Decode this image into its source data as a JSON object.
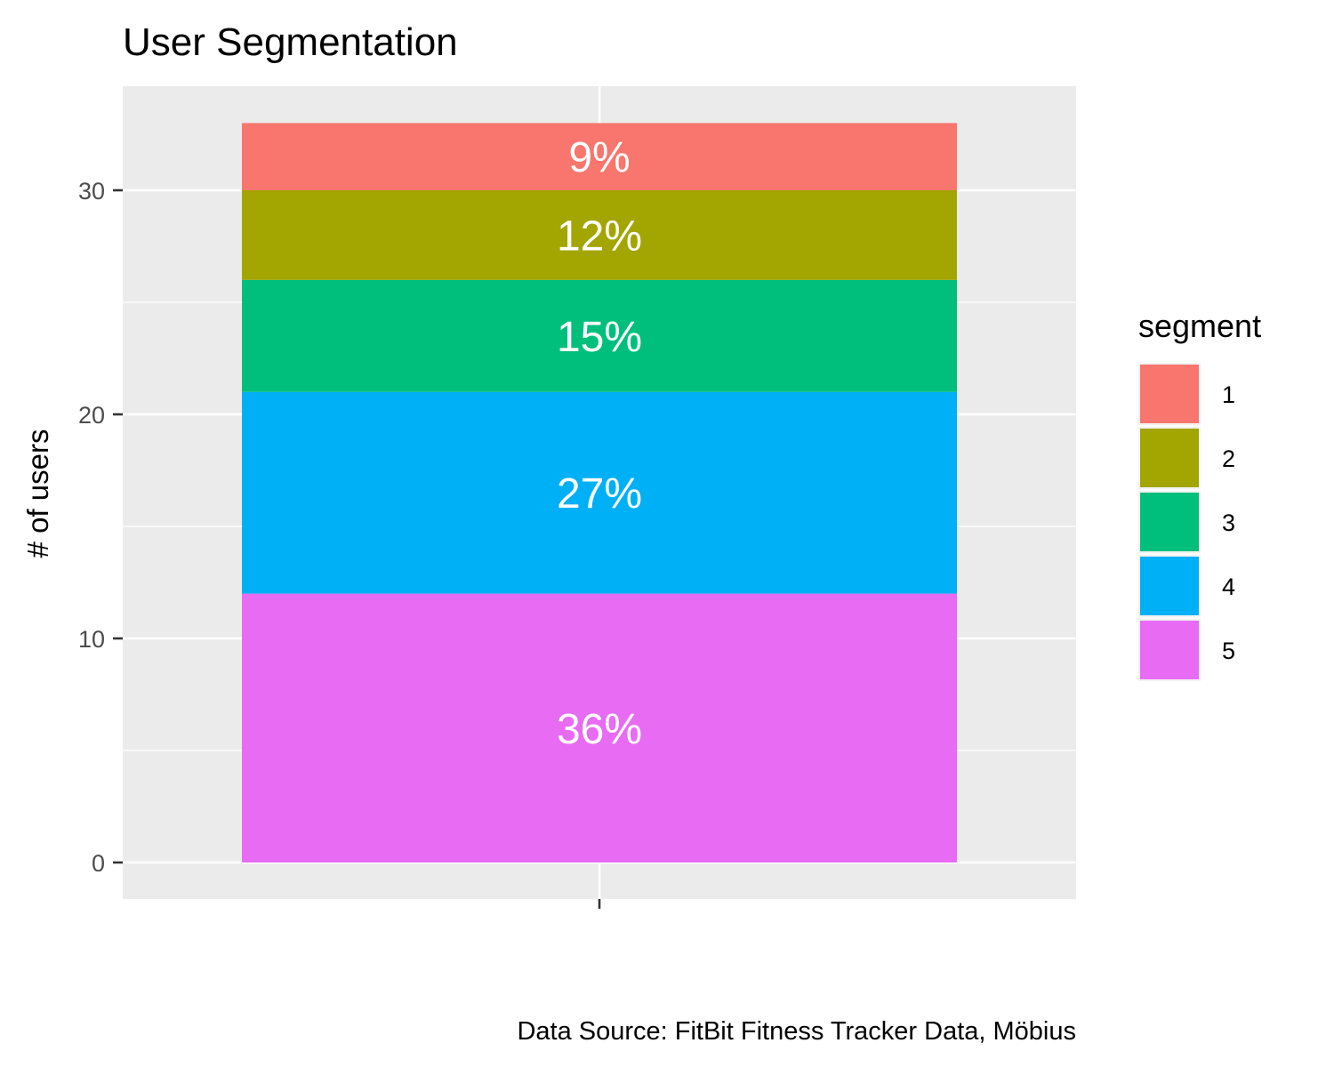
{
  "chart_data": {
    "type": "bar",
    "stacked": true,
    "title": "User Segmentation",
    "ylabel": "# of users",
    "xlabel": "",
    "categories": [
      ""
    ],
    "ylim": [
      0,
      33
    ],
    "y_ticks": [
      0,
      10,
      20,
      30
    ],
    "y_tick_labels": [
      "0",
      "10",
      "20",
      "30"
    ],
    "grid": true,
    "legend": {
      "title": "segment",
      "position": "right"
    },
    "series": [
      {
        "name": "1",
        "value": 3,
        "label": "9%",
        "color": "#F8766D"
      },
      {
        "name": "2",
        "value": 4,
        "label": "12%",
        "color": "#A3A500"
      },
      {
        "name": "3",
        "value": 5,
        "label": "15%",
        "color": "#00BF7D"
      },
      {
        "name": "4",
        "value": 9,
        "label": "27%",
        "color": "#00B0F6"
      },
      {
        "name": "5",
        "value": 12,
        "label": "36%",
        "color": "#E76BF3"
      }
    ],
    "caption": "Data Source: FitBit Fitness Tracker Data, Möbius"
  }
}
